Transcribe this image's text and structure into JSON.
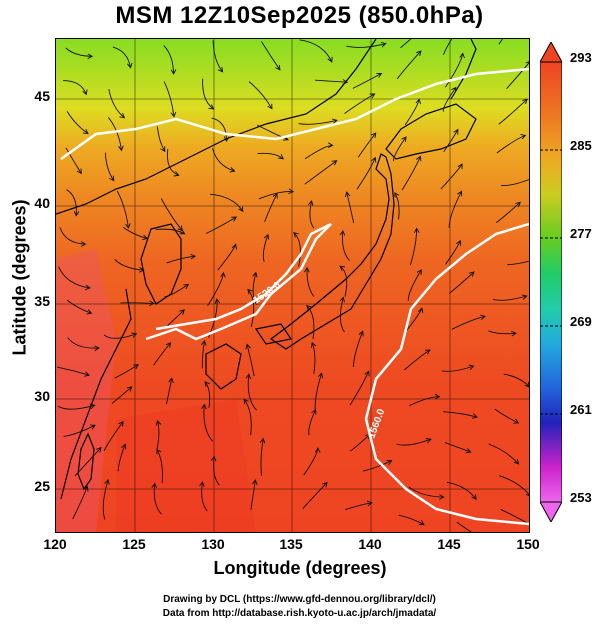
{
  "title": "MSM 12Z10Sep2025 (850.0hPa)",
  "axes": {
    "xlabel": "Longitude (degrees)",
    "ylabel": "Latitude (degrees)",
    "xticks": [
      "120",
      "125",
      "130",
      "135",
      "140",
      "145",
      "150"
    ],
    "yticks": [
      "45",
      "40",
      "35",
      "30",
      "25"
    ],
    "xlim": [
      120,
      150
    ],
    "ylim": [
      22.4,
      47.6
    ]
  },
  "colorbar": {
    "labels": [
      "293",
      "285",
      "277",
      "269",
      "261",
      "253"
    ],
    "range": [
      253,
      293
    ],
    "colors": [
      "#ee66ee",
      "#cc22cc",
      "#2222bb",
      "#2266dd",
      "#22aadd",
      "#22ccaa",
      "#22cc66",
      "#66cc22",
      "#cccc22",
      "#eeaa22",
      "#ee7722",
      "#ee4422"
    ]
  },
  "contours": [
    {
      "label": "1520.0",
      "lon": 137.2,
      "lat": 33.8
    },
    {
      "label": "1560.0",
      "lon": 141.2,
      "lat": 26.2
    }
  ],
  "credits": {
    "line1": "Drawing by DCL (https://www.gfd-dennou.org/library/dcl/)",
    "line2": "Data from http://database.rish.kyoto-u.ac.jp/arch/jmadata/"
  }
}
